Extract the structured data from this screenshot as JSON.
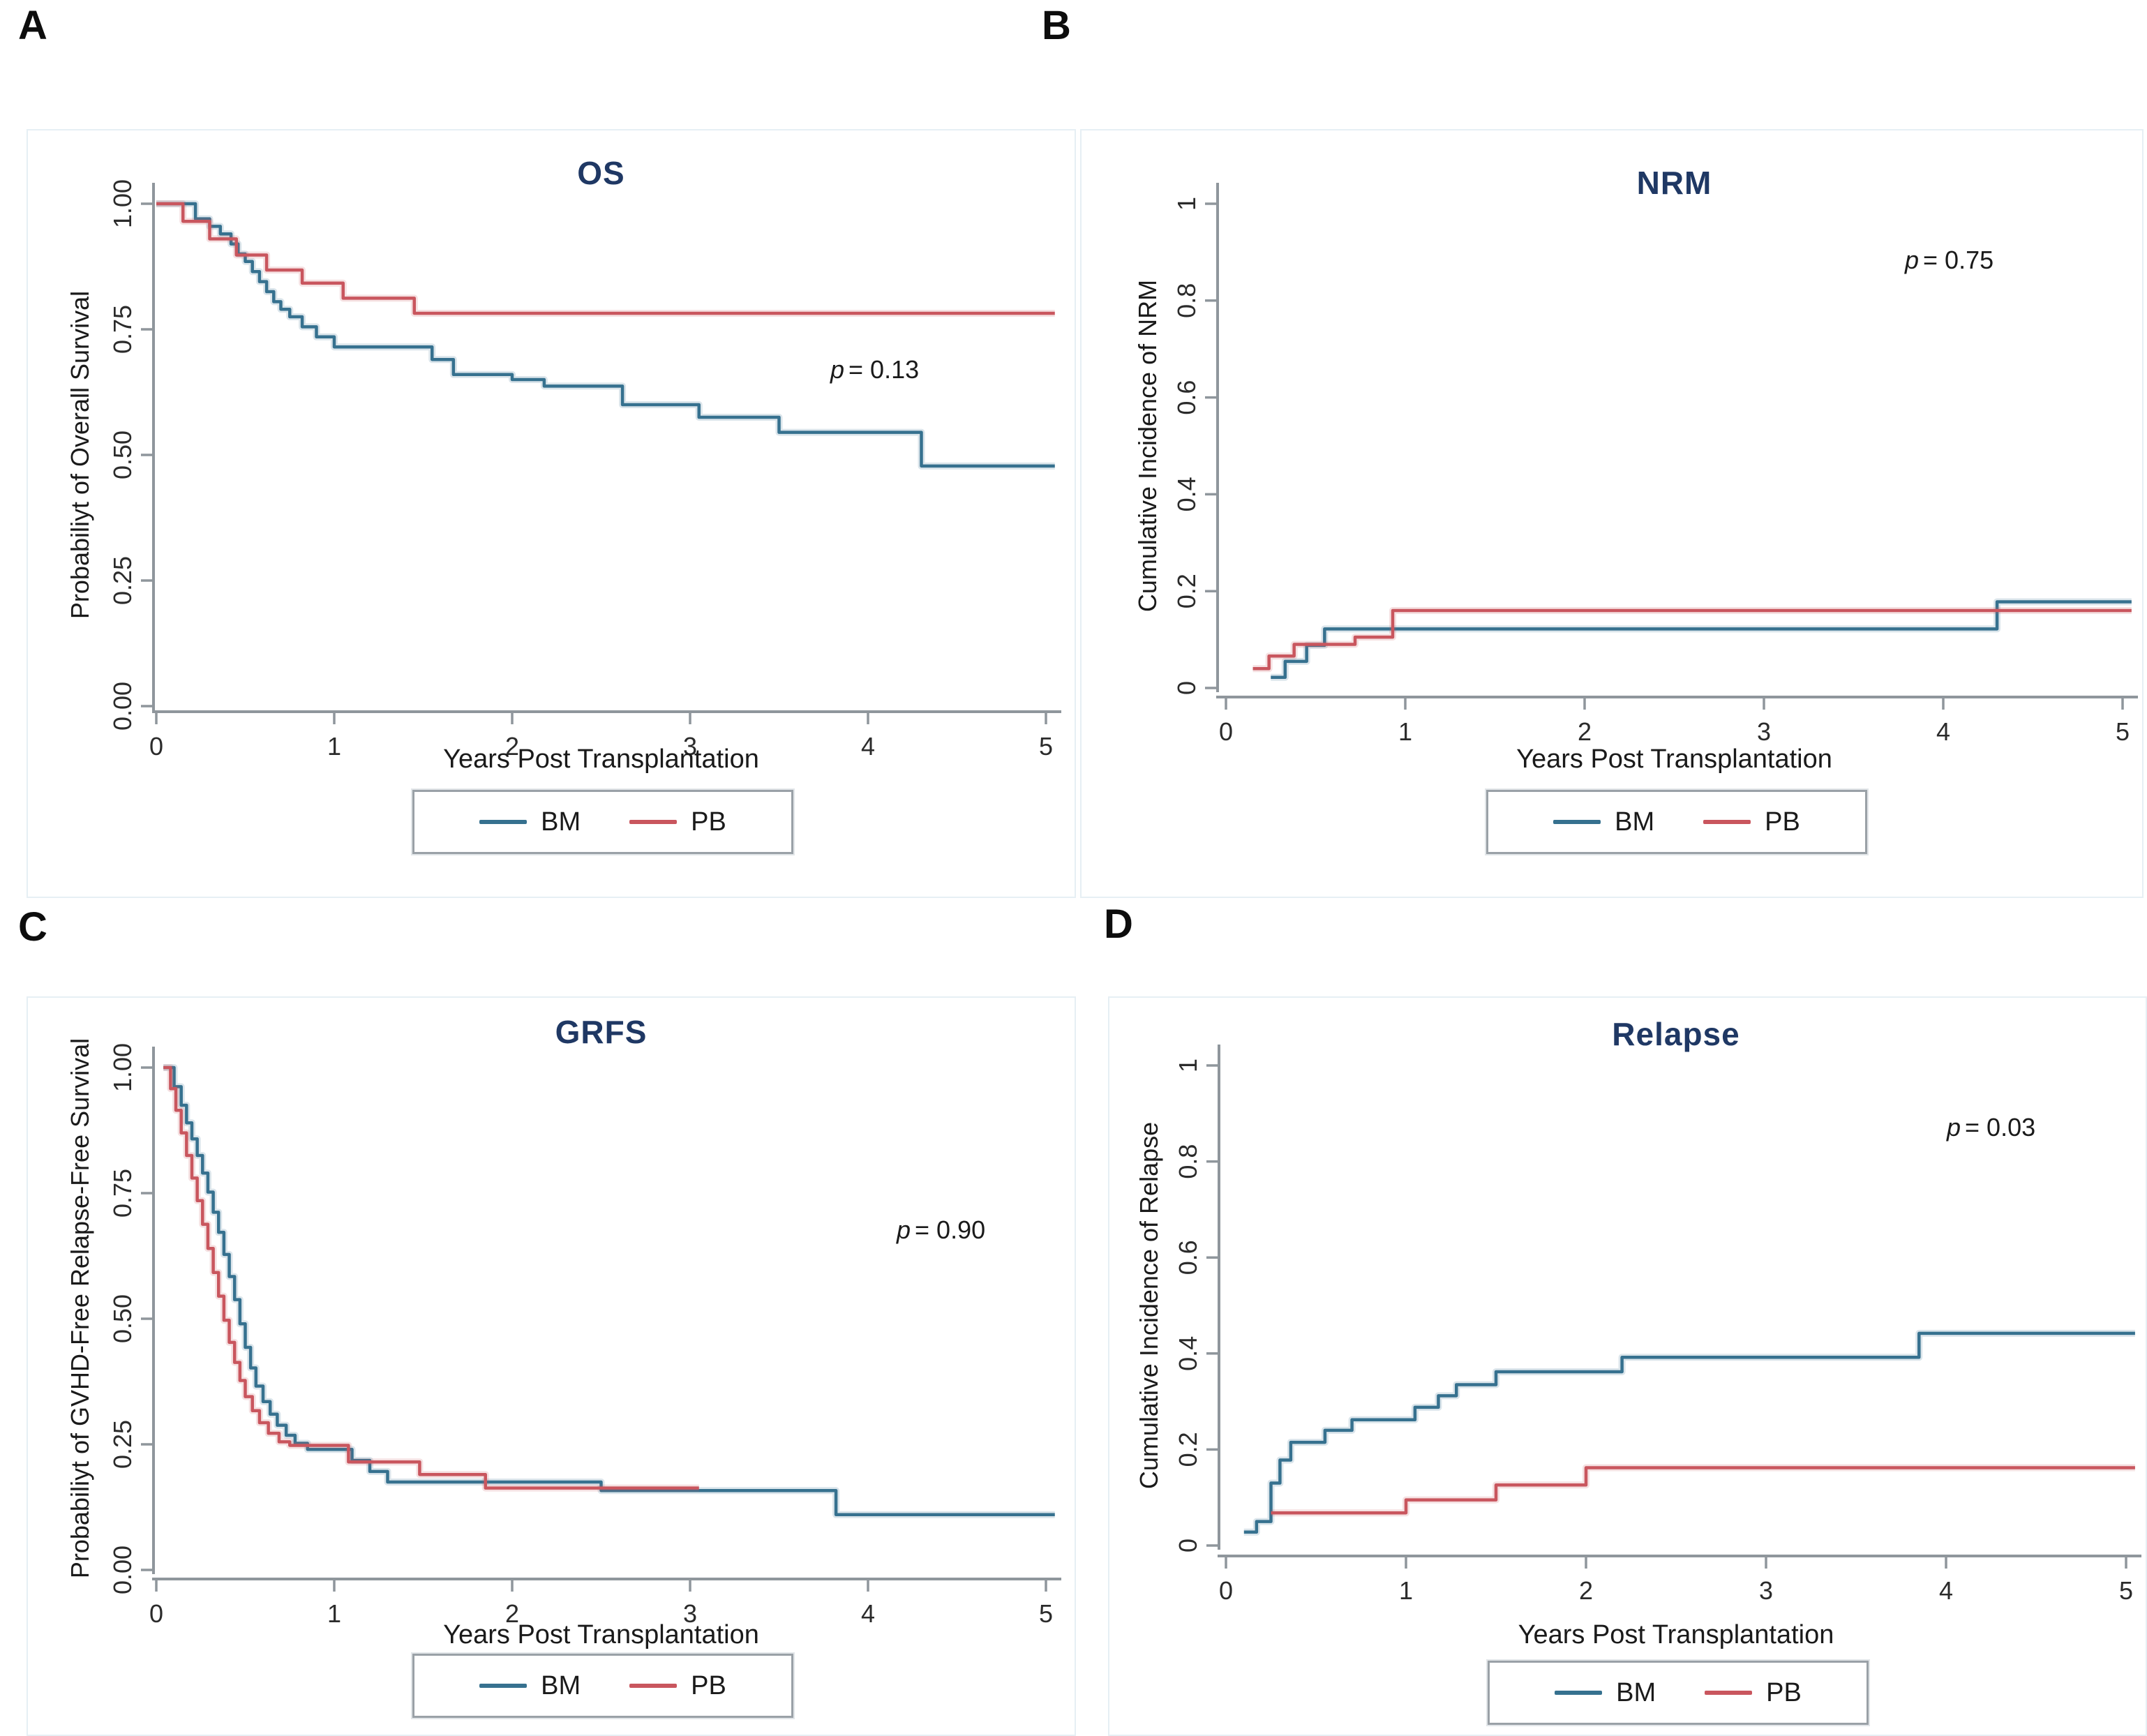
{
  "figure": {
    "colors": {
      "bm_blue": "#36718f",
      "pb_red": "#c9565e",
      "title_navy": "#1f3864",
      "axis_gray": "#8f969c"
    },
    "panels": [
      {
        "label": "A",
        "title": "OS",
        "p_sym": "p",
        "p_val": "= 0.13",
        "ylabel": "Probabiliyt of Overall Survival",
        "xlabel": "Years Post Transplantation",
        "legend": [
          {
            "label": "BM"
          },
          {
            "label": "PB"
          }
        ]
      },
      {
        "label": "B",
        "title": "NRM",
        "p_sym": "p",
        "p_val": "= 0.75",
        "ylabel": "Cumulative Incidence of NRM",
        "xlabel": "Years Post Transplantation",
        "legend": [
          {
            "label": "BM"
          },
          {
            "label": "PB"
          }
        ]
      },
      {
        "label": "C",
        "title": "GRFS",
        "p_sym": "p",
        "p_val": "= 0.90",
        "ylabel": "Probabiliyt of GVHD-Free Relapse-Free Survival",
        "xlabel": "Years Post Transplantation",
        "legend": [
          {
            "label": "BM"
          },
          {
            "label": "PB"
          }
        ]
      },
      {
        "label": "D",
        "title": "Relapse",
        "p_sym": "p",
        "p_val": "= 0.03",
        "ylabel": "Cumulative Incidence of Relapse",
        "xlabel": "Years Post Transplantation",
        "legend": [
          {
            "label": "BM"
          },
          {
            "label": "PB"
          }
        ]
      }
    ]
  },
  "chart_data": [
    {
      "type": "line",
      "step": true,
      "title": "OS",
      "p_text": "p = 0.13",
      "xlabel": "Years Post Transplantation",
      "ylabel": "Probabiliyt of Overall Survival",
      "xlim": [
        0,
        5.1
      ],
      "ylim": [
        0,
        1
      ],
      "legend_position": "bottom",
      "x_ticks": {
        "values": [
          0,
          1,
          2,
          3,
          4,
          5
        ],
        "labels": [
          "0",
          "1",
          "2",
          "3",
          "4",
          "5"
        ]
      },
      "y_ticks": {
        "values": [
          1,
          0.75,
          0.5,
          0.25,
          0
        ],
        "labels": [
          "1.00",
          "0.75",
          "0.50",
          "0.25",
          "0.00"
        ]
      },
      "series": [
        {
          "name": "BM",
          "color": "#36718f",
          "points": [
            [
              0,
              1
            ],
            [
              0.22,
              0.97
            ],
            [
              0.3,
              0.955
            ],
            [
              0.36,
              0.94
            ],
            [
              0.42,
              0.92
            ],
            [
              0.46,
              0.9
            ],
            [
              0.5,
              0.885
            ],
            [
              0.54,
              0.865
            ],
            [
              0.58,
              0.845
            ],
            [
              0.62,
              0.825
            ],
            [
              0.66,
              0.805
            ],
            [
              0.7,
              0.79
            ],
            [
              0.75,
              0.775
            ],
            [
              0.82,
              0.755
            ],
            [
              0.9,
              0.735
            ],
            [
              1.0,
              0.715
            ],
            [
              1.55,
              0.69
            ],
            [
              1.67,
              0.66
            ],
            [
              2.0,
              0.65
            ],
            [
              2.18,
              0.637
            ],
            [
              2.62,
              0.6
            ],
            [
              3.05,
              0.575
            ],
            [
              3.5,
              0.545
            ],
            [
              4.3,
              0.478
            ],
            [
              5.05,
              0.478
            ]
          ]
        },
        {
          "name": "PB",
          "color": "#c9565e",
          "points": [
            [
              0,
              1
            ],
            [
              0.15,
              0.965
            ],
            [
              0.3,
              0.93
            ],
            [
              0.45,
              0.898
            ],
            [
              0.62,
              0.868
            ],
            [
              0.82,
              0.842
            ],
            [
              1.05,
              0.812
            ],
            [
              1.45,
              0.782
            ],
            [
              5.05,
              0.782
            ]
          ]
        }
      ]
    },
    {
      "type": "line",
      "step": true,
      "title": "NRM",
      "p_text": "p = 0.75",
      "xlabel": "Years Post Transplantation",
      "ylabel": "Cumulative Incidence of NRM",
      "xlim": [
        0,
        5.1
      ],
      "ylim": [
        0,
        1
      ],
      "legend_position": "bottom",
      "x_ticks": {
        "values": [
          0,
          1,
          2,
          3,
          4,
          5
        ],
        "labels": [
          "0",
          "1",
          "2",
          "3",
          "4",
          "5"
        ]
      },
      "y_ticks": {
        "values": [
          1,
          0.8,
          0.6,
          0.4,
          0.2,
          0
        ],
        "labels": [
          "1",
          "0.8",
          "0.6",
          "0.4",
          "0.2",
          "0"
        ]
      },
      "series": [
        {
          "name": "BM",
          "color": "#36718f",
          "points": [
            [
              0.25,
              0.022
            ],
            [
              0.33,
              0.055
            ],
            [
              0.45,
              0.088
            ],
            [
              0.55,
              0.122
            ],
            [
              4.3,
              0.178
            ],
            [
              5.05,
              0.178
            ]
          ]
        },
        {
          "name": "PB",
          "color": "#c9565e",
          "points": [
            [
              0.15,
              0.04
            ],
            [
              0.24,
              0.066
            ],
            [
              0.38,
              0.09
            ],
            [
              0.72,
              0.105
            ],
            [
              0.93,
              0.16
            ],
            [
              5.05,
              0.16
            ]
          ]
        }
      ]
    },
    {
      "type": "line",
      "step": true,
      "title": "GRFS",
      "p_text": "p = 0.90",
      "xlabel": "Years Post Transplantation",
      "ylabel": "Probabiliyt of GVHD-Free Relapse-Free Survival",
      "xlim": [
        0,
        5.1
      ],
      "ylim": [
        0,
        1
      ],
      "legend_position": "bottom",
      "x_ticks": {
        "values": [
          0,
          1,
          2,
          3,
          4,
          5
        ],
        "labels": [
          "0",
          "1",
          "2",
          "3",
          "4",
          "5"
        ]
      },
      "y_ticks": {
        "values": [
          1,
          0.75,
          0.5,
          0.25,
          0
        ],
        "labels": [
          "1.00",
          "0.75",
          "0.50",
          "0.25",
          "0.00"
        ]
      },
      "series": [
        {
          "name": "BM",
          "color": "#36718f",
          "points": [
            [
              0.04,
              1
            ],
            [
              0.1,
              0.962
            ],
            [
              0.14,
              0.925
            ],
            [
              0.17,
              0.89
            ],
            [
              0.2,
              0.858
            ],
            [
              0.23,
              0.825
            ],
            [
              0.26,
              0.79
            ],
            [
              0.29,
              0.752
            ],
            [
              0.32,
              0.712
            ],
            [
              0.35,
              0.672
            ],
            [
              0.38,
              0.628
            ],
            [
              0.41,
              0.584
            ],
            [
              0.44,
              0.538
            ],
            [
              0.47,
              0.49
            ],
            [
              0.5,
              0.443
            ],
            [
              0.53,
              0.402
            ],
            [
              0.56,
              0.366
            ],
            [
              0.6,
              0.335
            ],
            [
              0.64,
              0.31
            ],
            [
              0.68,
              0.288
            ],
            [
              0.73,
              0.268
            ],
            [
              0.78,
              0.252
            ],
            [
              0.85,
              0.24
            ],
            [
              1.1,
              0.218
            ],
            [
              1.2,
              0.196
            ],
            [
              1.3,
              0.175
            ],
            [
              2.5,
              0.158
            ],
            [
              3.82,
              0.11
            ],
            [
              5.05,
              0.11
            ]
          ]
        },
        {
          "name": "PB",
          "color": "#c9565e",
          "points": [
            [
              0.04,
              1
            ],
            [
              0.08,
              0.958
            ],
            [
              0.11,
              0.915
            ],
            [
              0.14,
              0.87
            ],
            [
              0.17,
              0.825
            ],
            [
              0.2,
              0.78
            ],
            [
              0.23,
              0.735
            ],
            [
              0.26,
              0.688
            ],
            [
              0.29,
              0.64
            ],
            [
              0.32,
              0.592
            ],
            [
              0.35,
              0.545
            ],
            [
              0.38,
              0.497
            ],
            [
              0.41,
              0.453
            ],
            [
              0.44,
              0.413
            ],
            [
              0.47,
              0.377
            ],
            [
              0.5,
              0.345
            ],
            [
              0.54,
              0.317
            ],
            [
              0.58,
              0.293
            ],
            [
              0.63,
              0.272
            ],
            [
              0.69,
              0.255
            ],
            [
              0.75,
              0.248
            ],
            [
              1.08,
              0.215
            ],
            [
              1.48,
              0.19
            ],
            [
              1.85,
              0.163
            ],
            [
              3.05,
              0.163
            ]
          ]
        }
      ]
    },
    {
      "type": "line",
      "step": true,
      "title": "Relapse",
      "p_text": "p = 0.03",
      "xlabel": "Years Post Transplantation",
      "ylabel": "Cumulative Incidence of Relapse",
      "xlim": [
        0,
        5.1
      ],
      "ylim": [
        0,
        1
      ],
      "legend_position": "bottom",
      "x_ticks": {
        "values": [
          0,
          1,
          2,
          3,
          4,
          5
        ],
        "labels": [
          "0",
          "1",
          "2",
          "3",
          "4",
          "5"
        ]
      },
      "y_ticks": {
        "values": [
          1,
          0.8,
          0.6,
          0.4,
          0.2,
          0
        ],
        "labels": [
          "1",
          "0.8",
          "0.6",
          "0.4",
          "0.2",
          "0"
        ]
      },
      "series": [
        {
          "name": "BM",
          "color": "#36718f",
          "points": [
            [
              0.1,
              0.028
            ],
            [
              0.17,
              0.05
            ],
            [
              0.25,
              0.13
            ],
            [
              0.3,
              0.178
            ],
            [
              0.36,
              0.215
            ],
            [
              0.55,
              0.24
            ],
            [
              0.7,
              0.262
            ],
            [
              1.05,
              0.288
            ],
            [
              1.18,
              0.312
            ],
            [
              1.28,
              0.335
            ],
            [
              1.5,
              0.362
            ],
            [
              2.2,
              0.392
            ],
            [
              3.85,
              0.442
            ],
            [
              5.05,
              0.442
            ]
          ]
        },
        {
          "name": "PB",
          "color": "#c9565e",
          "points": [
            [
              0.25,
              0.068
            ],
            [
              1.0,
              0.095
            ],
            [
              1.5,
              0.126
            ],
            [
              2.0,
              0.162
            ],
            [
              5.05,
              0.162
            ]
          ]
        }
      ]
    }
  ]
}
